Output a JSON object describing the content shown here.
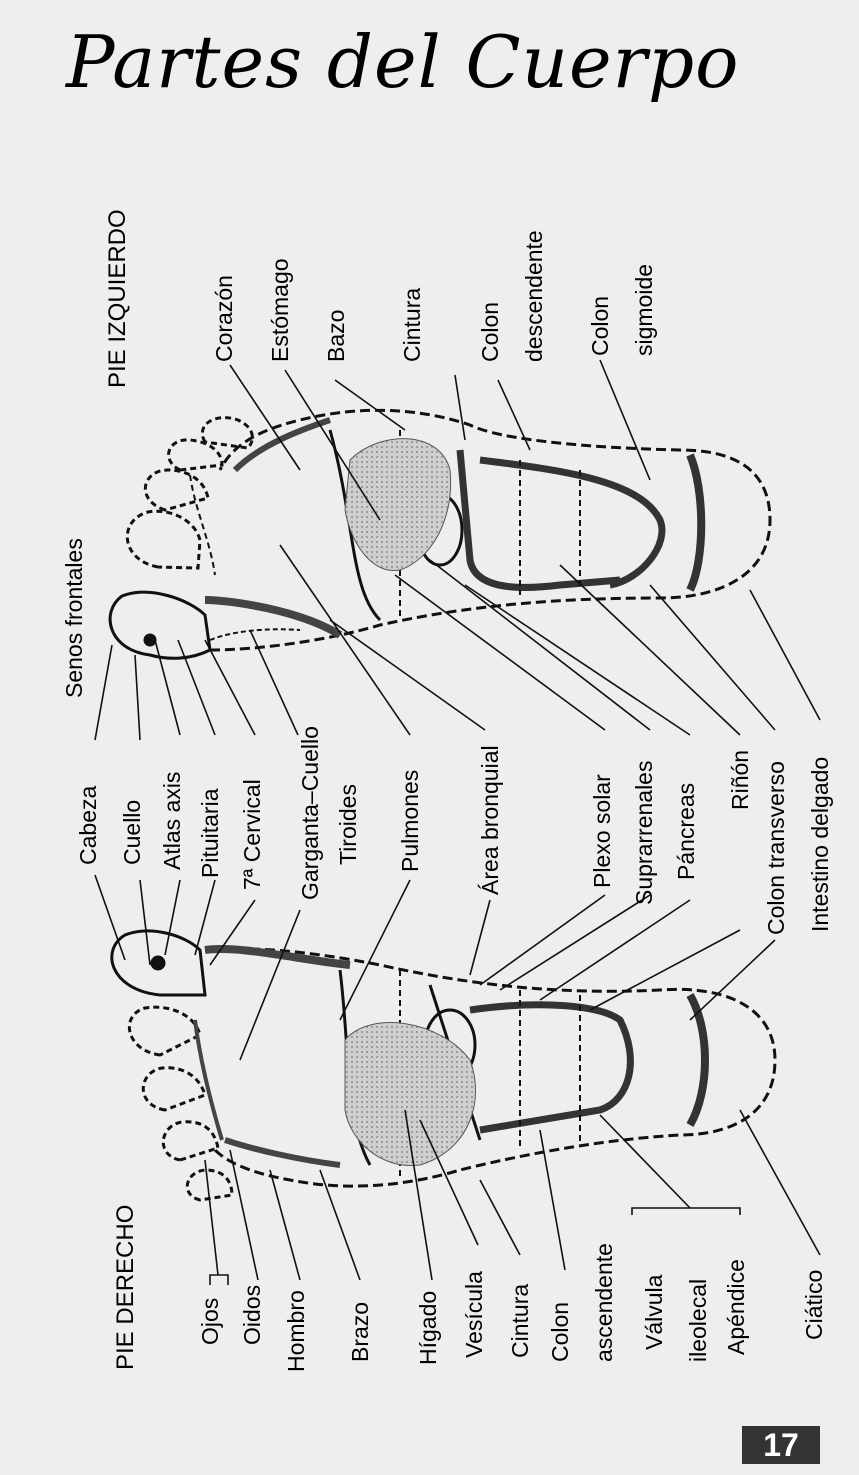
{
  "title": "Partes del Cuerpo",
  "page_number": "17",
  "feet": {
    "left": "PIE IZQUIERDO",
    "right": "PIE DERECHO"
  },
  "labels_top": {
    "corazon": "Corazón",
    "estomago": "Estómago",
    "bazo": "Bazo",
    "cintura": "Cintura",
    "colon_descendente_1": "Colon",
    "colon_descendente_2": "descendente",
    "colon_sigmoide_1": "Colon",
    "colon_sigmoide_2": "sigmoide"
  },
  "labels_middle": {
    "senos": "Senos frontales",
    "cabeza": "Cabeza",
    "cuello": "Cuello",
    "atlas": "Atlas axis",
    "pituitaria": "Pituitaria",
    "cervical": "7ª  Cervical",
    "garganta": "Garganta–Cuello",
    "tiroides": "Tiroides",
    "pulmones": "Pulmones",
    "bronquial": "Área bronquial",
    "plexo": "Plexo solar",
    "suprarrenales": "Suprarrenales",
    "pancreas": "Páncreas",
    "rinon": "Riñón",
    "colon_transverso": "Colon transverso",
    "intestino": "Intestino delgado"
  },
  "labels_bottom": {
    "ojos": "Ojos",
    "oidos": "Oidos",
    "hombro": "Hombro",
    "brazo": "Brazo",
    "higado": "Hígado",
    "vesicula": "Vesícula",
    "cintura": "Cintura",
    "colon_ascendente_1": "Colon",
    "colon_ascendente_2": "ascendente",
    "valvula_1": "Válvula",
    "valvula_2": "ileolecal",
    "apendice": "Apéndice",
    "ciatico": "Ciático"
  },
  "colors": {
    "ink": "#111111",
    "paper": "#eeeeee",
    "shade": "#bdbdbd",
    "page_box": "#333333"
  }
}
